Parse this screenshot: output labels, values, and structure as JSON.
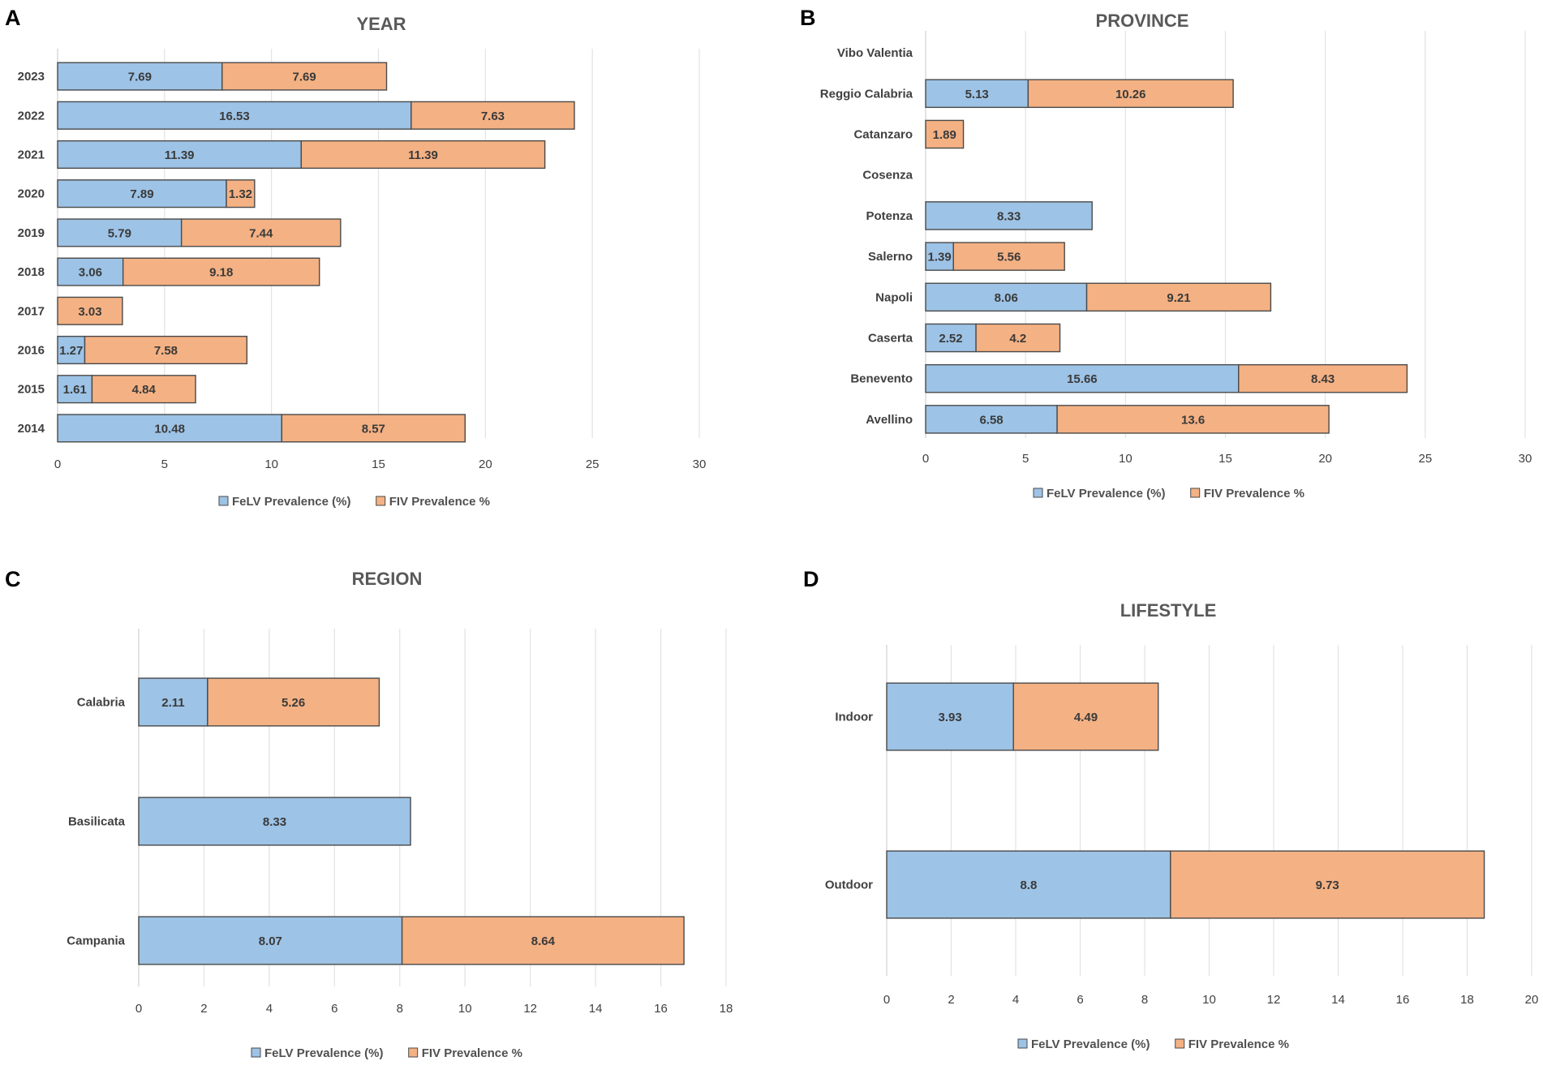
{
  "colors": {
    "felv": "#9dc3e6",
    "fiv": "#f4b183",
    "bar_stroke": "#4a4a4a",
    "grid": "#e2e2e2",
    "axis": "#d0d0d0",
    "text": "#404040",
    "title": "#595959"
  },
  "chart_data": [
    {
      "panel_label": "A",
      "title": "YEAR",
      "type": "bar",
      "orientation": "horizontal",
      "stacked": true,
      "categories": [
        "2023",
        "2022",
        "2021",
        "2020",
        "2019",
        "2018",
        "2017",
        "2016",
        "2015",
        "2014"
      ],
      "series": [
        {
          "name": "FeLV Prevalence (%)",
          "values": [
            7.69,
            16.53,
            11.39,
            7.89,
            5.79,
            3.06,
            0,
            1.27,
            1.61,
            10.48
          ],
          "labels": [
            "7.69",
            "16.53",
            "11.39",
            "7.89",
            "5.79",
            "3.06",
            "",
            "1.27",
            "1.61",
            "10.48"
          ]
        },
        {
          "name": "FIV Prevalence %",
          "values": [
            7.69,
            7.63,
            11.39,
            1.32,
            7.44,
            9.18,
            3.03,
            7.58,
            4.84,
            8.57
          ],
          "labels": [
            "7.69",
            "7.63",
            "11.39",
            "1.32",
            "7.44",
            "9.18",
            "3.03",
            "7.58",
            "4.84",
            "8.57"
          ]
        }
      ],
      "xlim": [
        0,
        30
      ],
      "xticks": [
        "0",
        "5",
        "10",
        "15",
        "20",
        "25",
        "30"
      ],
      "xticks_values": [
        0,
        5,
        10,
        15,
        20,
        25,
        30
      ],
      "legend": "bottom"
    },
    {
      "panel_label": "B",
      "title": "PROVINCE",
      "type": "bar",
      "orientation": "horizontal",
      "stacked": true,
      "categories": [
        "Vibo Valentia",
        "Reggio Calabria",
        "Catanzaro",
        "Cosenza",
        "Potenza",
        "Salerno",
        "Napoli",
        "Caserta",
        "Benevento",
        "Avellino"
      ],
      "series": [
        {
          "name": "FeLV Prevalence (%)",
          "values": [
            0,
            5.13,
            0,
            0,
            8.33,
            1.39,
            8.06,
            2.52,
            15.66,
            6.58
          ],
          "labels": [
            "",
            "5.13",
            "",
            "",
            "8.33",
            "1.39",
            "8.06",
            "2.52",
            "15.66",
            "6.58"
          ]
        },
        {
          "name": "FIV Prevalence %",
          "values": [
            0,
            10.26,
            1.89,
            0,
            0,
            5.56,
            9.21,
            4.2,
            8.43,
            13.6
          ],
          "labels": [
            "",
            "10.26",
            "1.89",
            "",
            "",
            "5.56",
            "9.21",
            "4.2",
            "8.43",
            "13.6"
          ]
        }
      ],
      "xlim": [
        0,
        30
      ],
      "xticks": [
        "0",
        "5",
        "10",
        "15",
        "20",
        "25",
        "30"
      ],
      "xticks_values": [
        0,
        5,
        10,
        15,
        20,
        25,
        30
      ],
      "legend": "bottom"
    },
    {
      "panel_label": "C",
      "title": "REGION",
      "type": "bar",
      "orientation": "horizontal",
      "stacked": true,
      "categories": [
        "Calabria",
        "Basilicata",
        "Campania"
      ],
      "series": [
        {
          "name": "FeLV Prevalence (%)",
          "values": [
            2.11,
            8.33,
            8.07
          ],
          "labels": [
            "2.11",
            "8.33",
            "8.07"
          ]
        },
        {
          "name": "FIV Prevalence %",
          "values": [
            5.26,
            0,
            8.64
          ],
          "labels": [
            "5.26",
            "",
            "8.64"
          ]
        }
      ],
      "xlim": [
        0,
        18
      ],
      "xticks": [
        "0",
        "2",
        "4",
        "6",
        "8",
        "10",
        "12",
        "14",
        "16",
        "18"
      ],
      "xticks_values": [
        0,
        2,
        4,
        6,
        8,
        10,
        12,
        14,
        16,
        18
      ],
      "legend": "bottom"
    },
    {
      "panel_label": "D",
      "title": "LIFESTYLE",
      "type": "bar",
      "orientation": "horizontal",
      "stacked": true,
      "categories": [
        "Indoor",
        "Outdoor"
      ],
      "series": [
        {
          "name": "FeLV Prevalence (%)",
          "values": [
            3.93,
            8.8
          ],
          "labels": [
            "3.93",
            "8.8"
          ]
        },
        {
          "name": "FIV Prevalence %",
          "values": [
            4.49,
            9.73
          ],
          "labels": [
            "4.49",
            "9.73"
          ]
        }
      ],
      "xlim": [
        0,
        20
      ],
      "xticks": [
        "0",
        "2",
        "4",
        "6",
        "8",
        "10",
        "12",
        "14",
        "16",
        "18",
        "20"
      ],
      "xticks_values": [
        0,
        2,
        4,
        6,
        8,
        10,
        12,
        14,
        16,
        18,
        20
      ],
      "legend": "bottom"
    }
  ]
}
